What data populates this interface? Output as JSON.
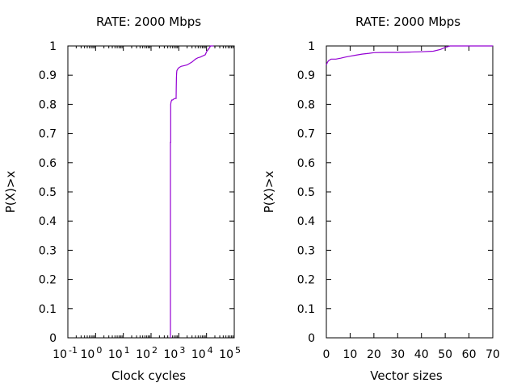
{
  "chart_data": [
    {
      "type": "line",
      "title": "RATE: 2000 Mbps",
      "xlabel": "Clock cycles",
      "ylabel": "P(X)>x",
      "xscale": "log",
      "xlim": [
        0.1,
        100000
      ],
      "ylim": [
        0,
        1
      ],
      "x_ticks": [
        {
          "base": "10",
          "exp": "-1"
        },
        {
          "base": "10",
          "exp": "0"
        },
        {
          "base": "10",
          "exp": "1"
        },
        {
          "base": "10",
          "exp": "2"
        },
        {
          "base": "10",
          "exp": "3"
        },
        {
          "base": "10",
          "exp": "4"
        },
        {
          "base": "10",
          "exp": "5"
        }
      ],
      "y_ticks": [
        "0",
        "0.1",
        "0.2",
        "0.3",
        "0.4",
        "0.5",
        "0.6",
        "0.7",
        "0.8",
        "0.9",
        "1"
      ],
      "grid": false,
      "series": [
        {
          "color": "#9400d3",
          "x": [
            500,
            500,
            510,
            510,
            530,
            560,
            600,
            700,
            780,
            800,
            810,
            820,
            830,
            850,
            900,
            1000,
            1200,
            1500,
            2000,
            3000,
            4000,
            5000,
            6000,
            7000,
            9000,
            10000,
            12000,
            14000,
            18000
          ],
          "y": [
            0,
            0.67,
            0.67,
            0.8,
            0.81,
            0.815,
            0.815,
            0.82,
            0.82,
            0.82,
            0.86,
            0.89,
            0.905,
            0.915,
            0.92,
            0.925,
            0.93,
            0.932,
            0.935,
            0.945,
            0.955,
            0.96,
            0.962,
            0.965,
            0.97,
            0.98,
            0.99,
            1.0,
            1.0
          ]
        }
      ]
    },
    {
      "type": "line",
      "title": "RATE: 2000 Mbps",
      "xlabel": "Vector sizes",
      "ylabel": "P(X)>x",
      "xlim": [
        0,
        70
      ],
      "ylim": [
        0,
        1
      ],
      "x_ticks": [
        "0",
        "10",
        "20",
        "30",
        "40",
        "50",
        "60",
        "70"
      ],
      "y_ticks": [
        "0",
        "0.1",
        "0.2",
        "0.3",
        "0.4",
        "0.5",
        "0.6",
        "0.7",
        "0.8",
        "0.9",
        "1"
      ],
      "grid": false,
      "series": [
        {
          "color": "#9400d3",
          "x": [
            0,
            0.5,
            1,
            2,
            4,
            6,
            8,
            10,
            12,
            15,
            18,
            20,
            25,
            30,
            35,
            40,
            45,
            48,
            50,
            52,
            55,
            60,
            70
          ],
          "y": [
            0.935,
            0.945,
            0.95,
            0.955,
            0.955,
            0.958,
            0.962,
            0.965,
            0.968,
            0.972,
            0.975,
            0.977,
            0.978,
            0.978,
            0.979,
            0.98,
            0.982,
            0.988,
            0.995,
            1.0,
            1.0,
            1.0,
            1.0
          ]
        }
      ]
    }
  ]
}
